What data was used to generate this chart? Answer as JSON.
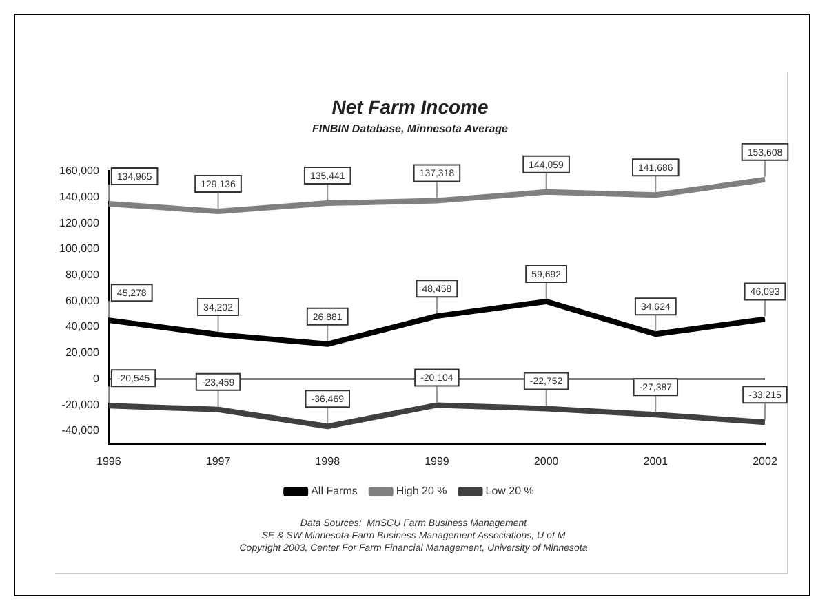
{
  "chart_data": {
    "type": "line",
    "title": "Net Farm Income",
    "subtitle": "FINBIN Database, Minnesota Average",
    "categories": [
      "1996",
      "1997",
      "1998",
      "1999",
      "2000",
      "2001",
      "2002"
    ],
    "series": [
      {
        "name": "All Farms",
        "color": "#000000",
        "values": [
          45278,
          34202,
          26881,
          48458,
          59692,
          34624,
          46093
        ],
        "value_labels": [
          "45,278",
          "34,202",
          "26,881",
          "48,458",
          "59,692",
          "34,624",
          "46,093"
        ]
      },
      {
        "name": "High 20 %",
        "color": "#808080",
        "values": [
          134965,
          129136,
          135441,
          137318,
          144059,
          141686,
          153608
        ],
        "value_labels": [
          "134,965",
          "129,136",
          "135,441",
          "137,318",
          "144,059",
          "141,686",
          "153,608"
        ]
      },
      {
        "name": "Low 20 %",
        "color": "#404040",
        "values": [
          -20545,
          -23459,
          -36469,
          -20104,
          -22752,
          -27387,
          -33215
        ],
        "value_labels": [
          "-20,545",
          "-23,459",
          "-36,469",
          "-20,104",
          "-22,752",
          "-27,387",
          "-33,215"
        ]
      }
    ],
    "ylim": [
      -50000,
      160000
    ],
    "yticks": [
      {
        "value": -40000,
        "label": "-40,000"
      },
      {
        "value": -20000,
        "label": "-20,000"
      },
      0,
      {
        "value": 20000,
        "label": "20,000"
      },
      {
        "value": 40000,
        "label": "40,000"
      },
      {
        "value": 60000,
        "label": "60,000"
      },
      {
        "value": 80000,
        "label": "80,000"
      },
      {
        "value": 100000,
        "label": "100,000"
      },
      {
        "value": 120000,
        "label": "120,000"
      },
      {
        "value": 140000,
        "label": "140,000"
      },
      {
        "value": 160000,
        "label": "160,000"
      }
    ],
    "ref_lines": [
      {
        "axis": "y",
        "value": 0,
        "color": "#000000"
      }
    ],
    "grid": false,
    "legend": "bottom",
    "marker": "none",
    "line_style": "solid",
    "annotations": [
      "Data Sources:  MnSCU Farm Business Management",
      "SE & SW Minnesota Farm Business Management Associations, U of M",
      "Copyright 2003, Center For Farm Financial Management, University of Minnesota"
    ]
  }
}
